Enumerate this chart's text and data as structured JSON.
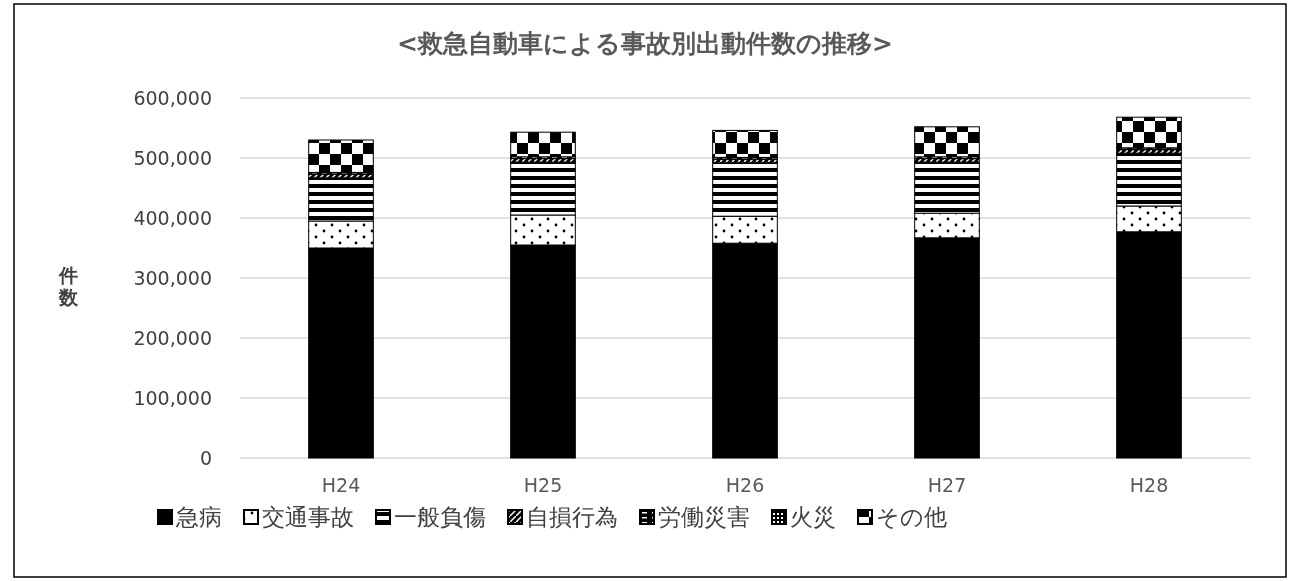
{
  "chart_data": {
    "type": "bar",
    "title": "<救急自動車による事故別出動件数の推移>",
    "ylabel": "件数",
    "categories": [
      "H24",
      "H25",
      "H26",
      "H27",
      "H28"
    ],
    "stacked": true,
    "series": [
      {
        "name": "急病",
        "color": "#000000",
        "values": [
          350000,
          355000,
          358000,
          367000,
          377000
        ]
      },
      {
        "name": "交通事故",
        "color": "#000000",
        "values": [
          45000,
          50000,
          45000,
          41000,
          43000
        ]
      },
      {
        "name": "一般負傷",
        "color": "#000000",
        "values": [
          72000,
          88000,
          89000,
          85000,
          88000
        ]
      },
      {
        "name": "自損行為",
        "color": "#000000",
        "values": [
          6000,
          6000,
          6000,
          6000,
          6000
        ]
      },
      {
        "name": "労働災害",
        "color": "#000000",
        "values": [
          3000,
          3000,
          3000,
          3000,
          3000
        ]
      },
      {
        "name": "火災",
        "color": "#000000",
        "values": [
          null,
          null,
          null,
          null,
          null
        ]
      },
      {
        "name": "その他",
        "color": "#000000",
        "values": [
          54000,
          41000,
          45000,
          50000,
          51000
        ]
      }
    ],
    "ylim": [
      0,
      600000
    ],
    "yticks": [
      {
        "value": 0,
        "label": "0"
      },
      {
        "value": 100000,
        "label": "100,000"
      },
      {
        "value": 200000,
        "label": "200,000"
      },
      {
        "value": 300000,
        "label": "300,000"
      },
      {
        "value": 400000,
        "label": "400,000"
      },
      {
        "value": 500000,
        "label": "500,000"
      },
      {
        "value": 600000,
        "label": "600,000"
      }
    ],
    "grid": "y",
    "legend": "bottom"
  }
}
